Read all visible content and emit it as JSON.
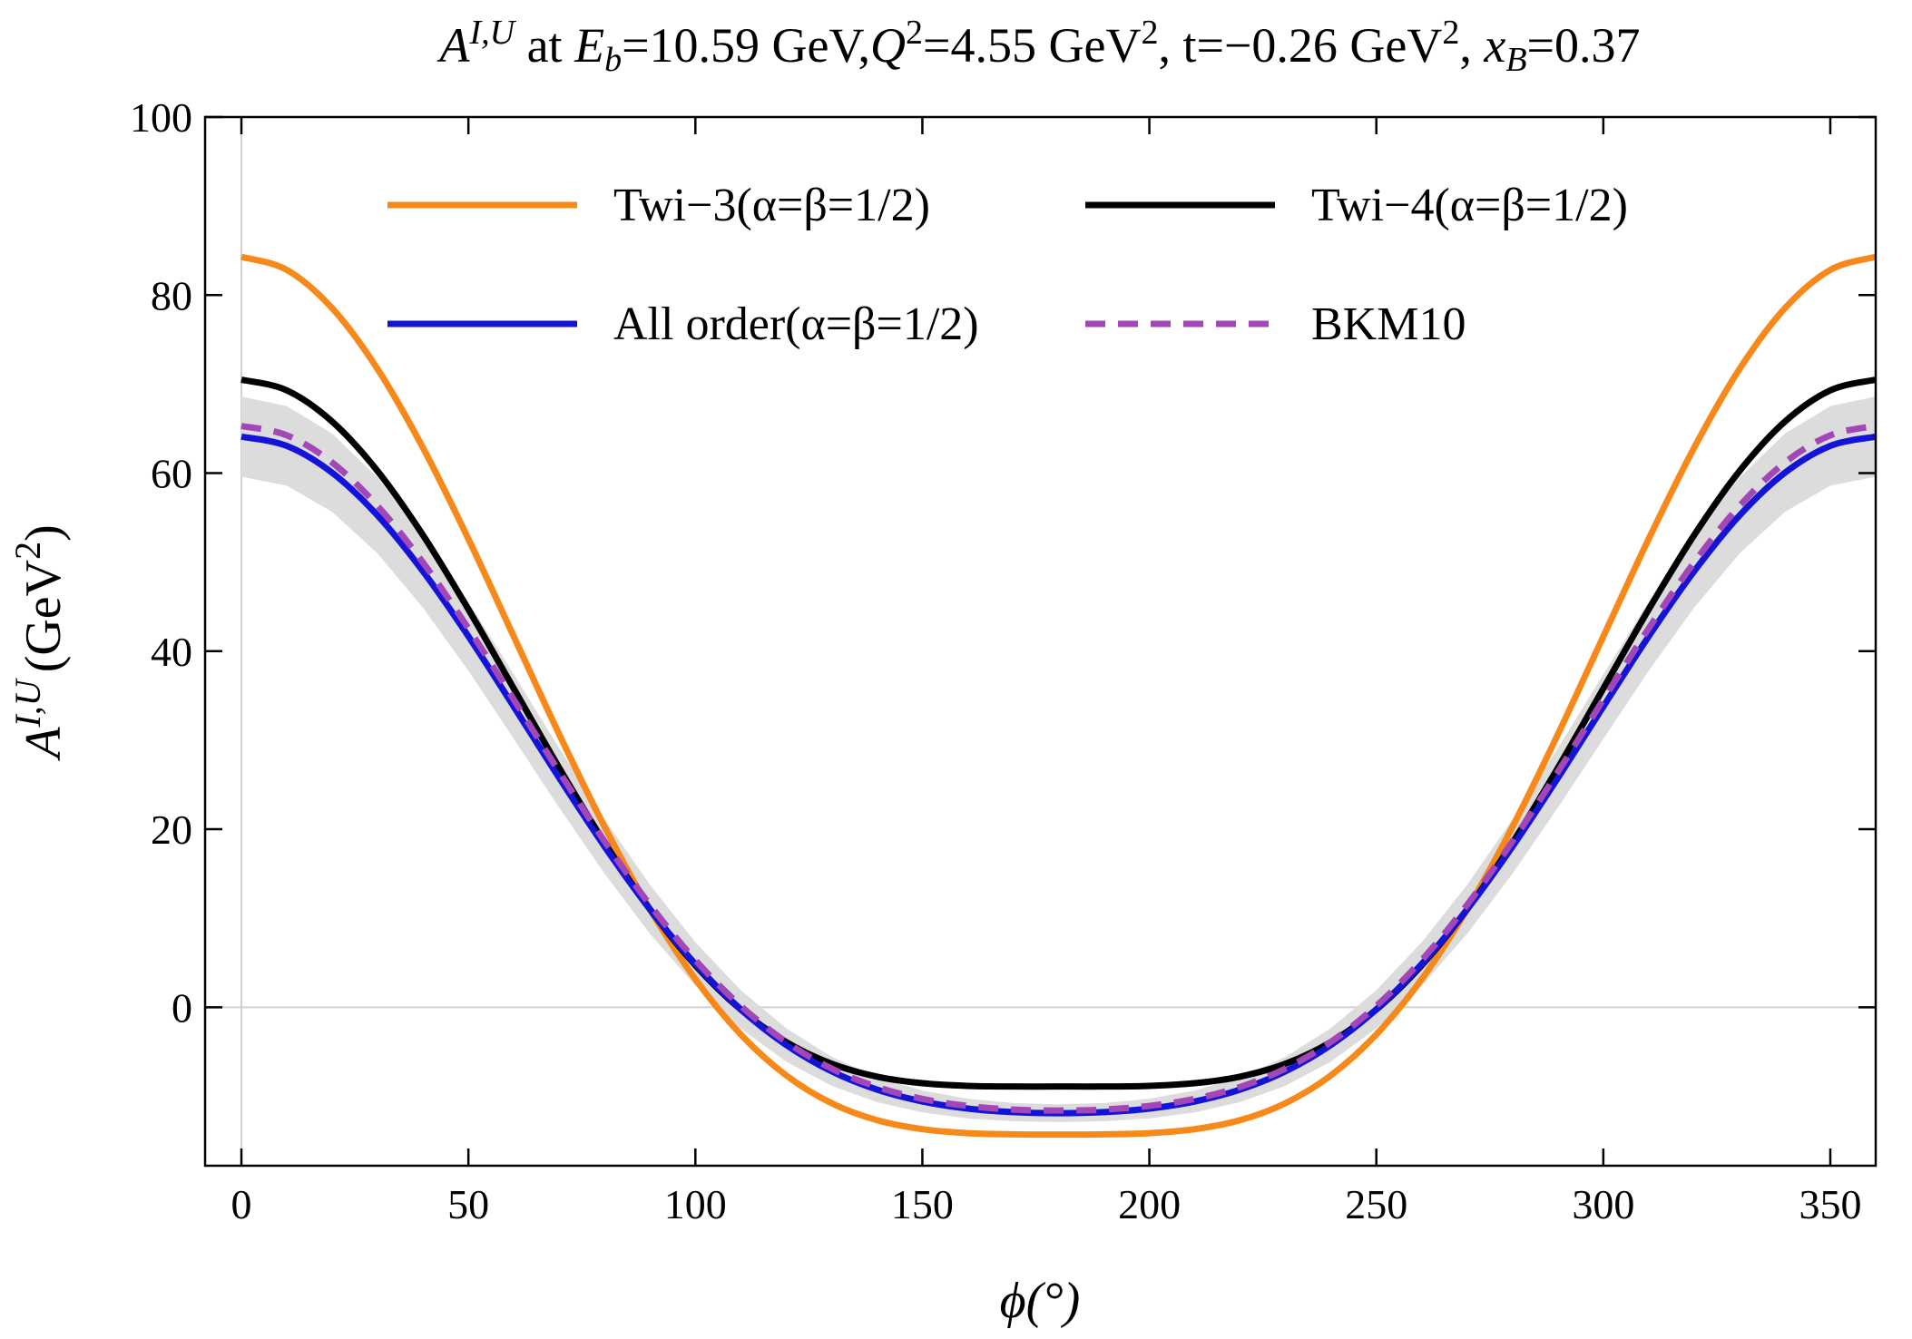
{
  "chart_data": {
    "type": "line",
    "title_parts": [
      "A",
      "I,U",
      " at ",
      "E",
      "b",
      "=10.59 GeV,",
      "Q",
      "2",
      "=4.55 GeV",
      "2",
      ", t=−0.26 GeV",
      "2",
      ", ",
      "x",
      "B",
      "=0.37"
    ],
    "y_label_parts": [
      "A",
      "I,U",
      "(GeV",
      "2",
      ")"
    ],
    "x_label": "ϕ(°)",
    "x": [
      0,
      10,
      20,
      30,
      40,
      50,
      60,
      70,
      80,
      90,
      100,
      110,
      120,
      130,
      140,
      150,
      160,
      170,
      180,
      190,
      200,
      210,
      220,
      230,
      240,
      250,
      260,
      270,
      280,
      290,
      300,
      310,
      320,
      330,
      340,
      350,
      360
    ],
    "series": [
      {
        "name": "Twi−3(α=β=1/2)",
        "color": "#f7891b",
        "values": [
          84.3,
          82.83,
          78.52,
          71.69,
          62.84,
          52.61,
          41.65,
          30.67,
          20.28,
          11,
          3.16,
          -3.05,
          -7.65,
          -10.77,
          -12.68,
          -13.69,
          -14.14,
          -14.27,
          -14.3,
          -14.27,
          -14.14,
          -13.69,
          -12.68,
          -10.77,
          -7.65,
          -3.05,
          3.16,
          11,
          20.28,
          30.67,
          41.65,
          52.61,
          62.84,
          71.69,
          78.52,
          82.83,
          84.3
        ]
      },
      {
        "name": "Twi−4(α=β=1/2)",
        "color": "#000000",
        "values": [
          70.5,
          69.3,
          65.79,
          60.23,
          53.03,
          44.7,
          35.8,
          26.9,
          18.49,
          11,
          4.71,
          -0.26,
          -3.9,
          -6.34,
          -7.79,
          -8.53,
          -8.83,
          -8.9,
          -8.9,
          -8.9,
          -8.83,
          -8.53,
          -7.79,
          -6.34,
          -3.9,
          -0.26,
          4.71,
          11,
          18.49,
          26.9,
          35.8,
          44.7,
          53.03,
          60.23,
          65.79,
          69.3,
          70.5
        ]
      },
      {
        "name": "All order(α=β=1/2)",
        "color": "#1414d8",
        "values": [
          64.1,
          63.06,
          60.04,
          55.24,
          48.97,
          41.67,
          33.77,
          25.77,
          18.06,
          11,
          4.86,
          -0.23,
          -4.23,
          -7.19,
          -9.25,
          -10.58,
          -11.38,
          -11.78,
          -11.9,
          -11.78,
          -11.38,
          -10.58,
          -9.25,
          -7.19,
          -4.23,
          -0.23,
          4.86,
          11,
          18.06,
          25.77,
          33.77,
          41.67,
          48.97,
          55.24,
          60.04,
          63.06,
          64.1
        ],
        "band": {
          "color": "#dcdcdc",
          "upper": [
            68.6,
            67.53,
            64.43,
            59.51,
            53.06,
            45.54,
            37.4,
            29.12,
            21.11,
            13.75,
            7.31,
            1.92,
            -2.35,
            -5.56,
            -7.84,
            -9.35,
            -10.27,
            -10.75,
            -10.9,
            -10.75,
            -10.27,
            -9.35,
            -7.84,
            -5.56,
            -2.35,
            1.92,
            7.31,
            13.75,
            21.11,
            29.12,
            37.4,
            45.54,
            53.06,
            59.51,
            64.43,
            67.53,
            68.6
          ],
          "lower": [
            59.6,
            58.59,
            55.65,
            50.97,
            44.88,
            37.8,
            30.14,
            22.42,
            15.01,
            8.25,
            2.41,
            -2.38,
            -6.11,
            -8.82,
            -10.66,
            -11.81,
            -12.49,
            -12.81,
            -12.9,
            -12.81,
            -12.49,
            -11.81,
            -10.66,
            -8.82,
            -6.11,
            -2.38,
            2.41,
            8.25,
            15.01,
            22.42,
            30.14,
            37.8,
            44.88,
            50.97,
            55.65,
            58.59,
            59.6
          ]
        }
      },
      {
        "name": "BKM10",
        "color": "#a246b8",
        "style": "dashed",
        "values": [
          65.3,
          64.25,
          61.19,
          56.31,
          49.96,
          42.56,
          34.56,
          26.45,
          18.64,
          11.5,
          5.29,
          0.15,
          -3.89,
          -6.88,
          -8.95,
          -10.29,
          -11.08,
          -11.49,
          -11.6,
          -11.49,
          -11.08,
          -10.29,
          -8.95,
          -6.88,
          -3.89,
          0.15,
          5.29,
          11.5,
          18.64,
          26.45,
          34.56,
          42.56,
          49.96,
          56.31,
          61.19,
          64.25,
          65.3
        ]
      }
    ],
    "xlim": [
      -8,
      360
    ],
    "xticks": [
      0,
      50,
      100,
      150,
      200,
      250,
      300,
      350
    ],
    "ylim": [
      -17.8,
      100
    ],
    "yticks": [
      0,
      20,
      40,
      60,
      80,
      100
    ],
    "legend": "top"
  }
}
